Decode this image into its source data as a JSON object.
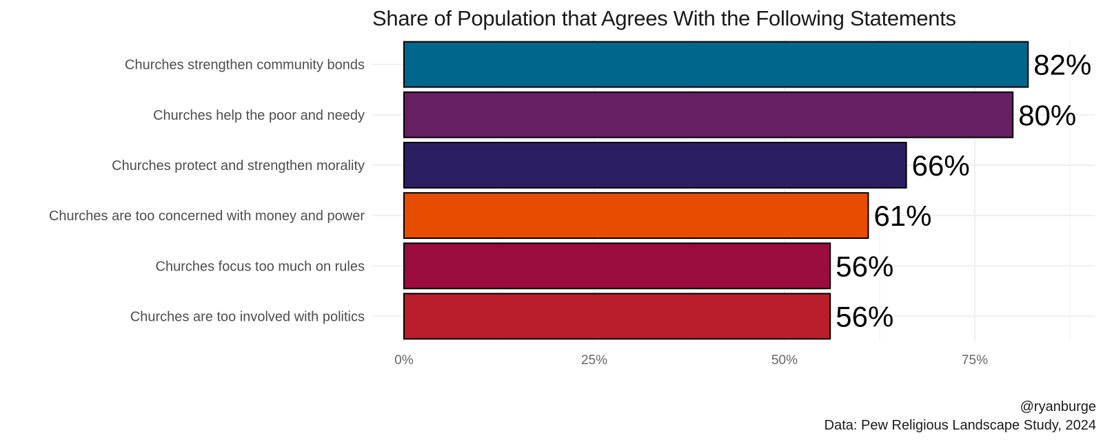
{
  "chart_data": {
    "type": "bar",
    "orientation": "horizontal",
    "title": "Share of Population that Agrees With the Following Statements",
    "xlabel": "",
    "ylabel": "",
    "categories": [
      "Churches strengthen community bonds",
      "Churches help the poor and needy",
      "Churches protect and strengthen morality",
      "Churches are too concerned with money and power",
      "Churches focus too much on rules",
      "Churches are too involved with politics"
    ],
    "values": [
      82,
      80,
      66,
      61,
      56,
      56
    ],
    "data_labels": [
      "82%",
      "80%",
      "66%",
      "61%",
      "56%",
      "56%"
    ],
    "colors": [
      "#00668b",
      "#661f63",
      "#2d1e63",
      "#e84c00",
      "#9b0c3e",
      "#ba1d2c"
    ],
    "xlim": [
      0,
      90
    ],
    "xticks": [
      0,
      25,
      50,
      75
    ],
    "xtick_labels": [
      "0%",
      "25%",
      "50%",
      "75%"
    ],
    "grid": true,
    "legend": "none"
  },
  "caption": {
    "line1": "@ryanburge",
    "line2": "Data: Pew Religious Landscape Study, 2024"
  }
}
